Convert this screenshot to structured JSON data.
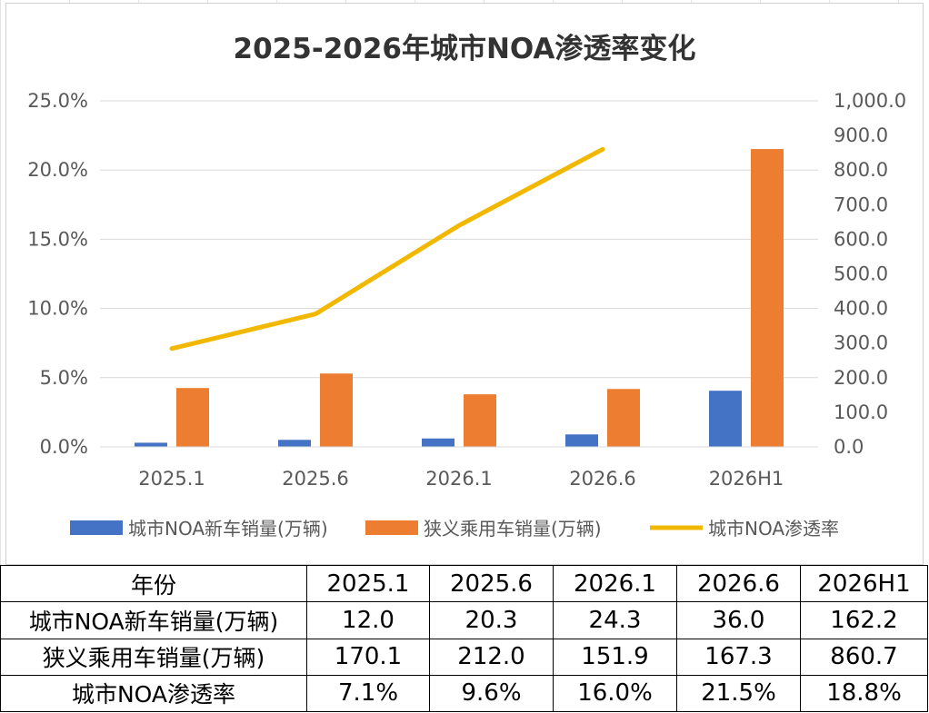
{
  "chart_data": {
    "type": "bar",
    "title": "2025-2026年城市NOA渗透率变化",
    "categories": [
      "2025.1",
      "2025.6",
      "2026.1",
      "2026.6",
      "2026H1"
    ],
    "series": [
      {
        "name": "城市NOA新车销量(万辆)",
        "type": "bar",
        "axis": "right",
        "color": "#4472C4",
        "values": [
          12.0,
          20.3,
          24.3,
          36.0,
          162.2
        ]
      },
      {
        "name": "狭义乘用车销量(万辆)",
        "type": "bar",
        "axis": "right",
        "color": "#ED7D31",
        "values": [
          170.1,
          212.0,
          151.9,
          167.3,
          860.7
        ]
      },
      {
        "name": "城市NOA渗透率",
        "type": "line",
        "axis": "left",
        "color": "#F2B800",
        "values": [
          0.071,
          0.096,
          0.16,
          0.215,
          null
        ]
      }
    ],
    "y_left": {
      "range": [
        0,
        0.25
      ],
      "ticks": [
        "0.0%",
        "5.0%",
        "10.0%",
        "15.0%",
        "20.0%",
        "25.0%"
      ]
    },
    "y_right": {
      "range": [
        0,
        1000
      ],
      "ticks": [
        "0.0",
        "100.0",
        "200.0",
        "300.0",
        "400.0",
        "500.0",
        "600.0",
        "700.0",
        "800.0",
        "900.0",
        "1,000.0"
      ]
    },
    "grid": true,
    "legend": "bottom"
  },
  "table": {
    "header": [
      "年份",
      "2025.1",
      "2025.6",
      "2026.1",
      "2026.6",
      "2026H1"
    ],
    "rows": [
      [
        "城市NOA新车销量(万辆)",
        "12.0",
        "20.3",
        "24.3",
        "36.0",
        "162.2"
      ],
      [
        "狭义乘用车销量(万辆)",
        "170.1",
        "212.0",
        "151.9",
        "167.3",
        "860.7"
      ],
      [
        "城市NOA渗透率",
        "7.1%",
        "9.6%",
        "16.0%",
        "21.5%",
        "18.8%"
      ]
    ]
  }
}
